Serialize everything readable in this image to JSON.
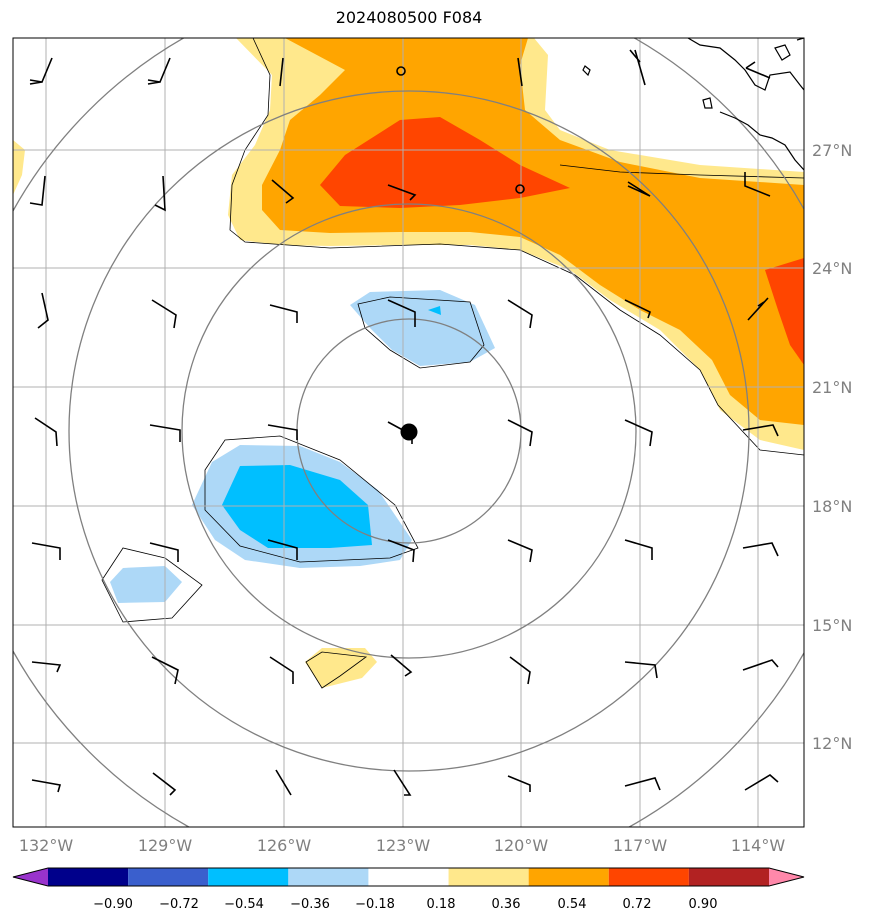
{
  "title": "2024080500 F084",
  "map": {
    "lon_ticks": [
      "132°W",
      "129°W",
      "126°W",
      "123°W",
      "120°W",
      "117°W",
      "114°W"
    ],
    "lat_ticks": [
      "27°N",
      "24°N",
      "21°N",
      "18°N",
      "15°N",
      "12°N"
    ],
    "storm_center": {
      "lon": -122.8,
      "lat": 19.8
    }
  },
  "colorbar": {
    "colors": [
      "#9933cc",
      "#00008b",
      "#3a5fcd",
      "#00bfff",
      "#add8f7",
      "#ffffff",
      "#ffe88c",
      "#ffa500",
      "#ff4500",
      "#b22222",
      "#ff88aa"
    ],
    "labels": [
      "−0.90",
      "−0.72",
      "−0.54",
      "−0.36",
      "−0.18",
      "0.18",
      "0.36",
      "0.54",
      "0.72",
      "0.90"
    ]
  },
  "legend_colors": {
    "grid": "#b0b0b0",
    "range_rings": "#808080",
    "coast": "#000000"
  }
}
